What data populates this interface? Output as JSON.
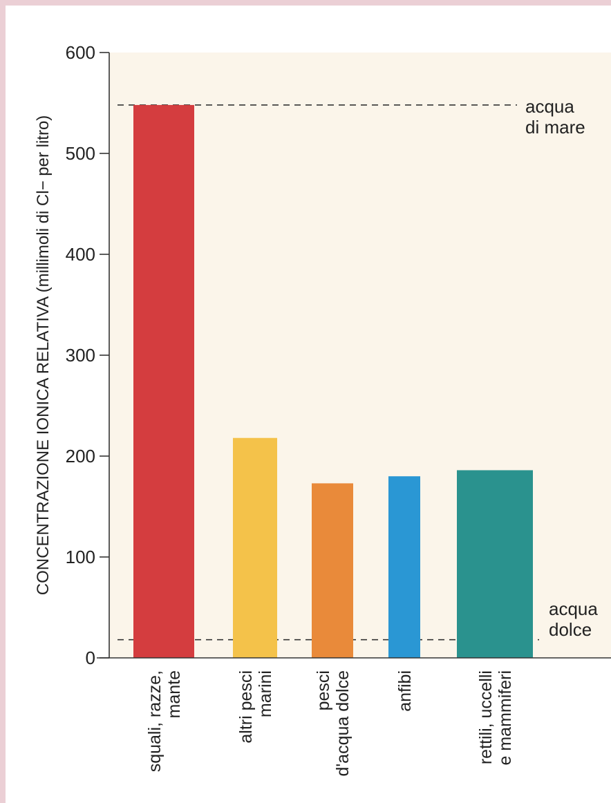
{
  "chart_data": {
    "type": "bar",
    "ylabel": "CONCENTRAZIONE IONICA RELATIVA (millimoli di Cl− per litro)",
    "xlabel": "",
    "ylim": [
      0,
      600
    ],
    "yticks": [
      "0",
      "100",
      "200",
      "300",
      "400",
      "500",
      "600"
    ],
    "yticks_values": [
      0,
      100,
      200,
      300,
      400,
      500,
      600
    ],
    "grid": false,
    "categories": [
      {
        "lines": [
          "squali, razze,",
          "mante"
        ],
        "value": 548,
        "color": "#d43d3f"
      },
      {
        "lines": [
          "altri pesci",
          "marini"
        ],
        "value": 218,
        "color": "#f4c24a"
      },
      {
        "lines": [
          "pesci",
          "d'acqua dolce"
        ],
        "value": 173,
        "color": "#e98a3a"
      },
      {
        "lines": [
          "anfibi"
        ],
        "value": 180,
        "color": "#2a97d4"
      },
      {
        "lines": [
          "rettili, uccelli",
          "e mammiferi"
        ],
        "value": 186,
        "color": "#2a928e"
      }
    ],
    "reference_lines": [
      {
        "value": 548,
        "lines": [
          "acqua",
          "di mare"
        ]
      },
      {
        "value": 18,
        "lines": [
          "acqua",
          "dolce"
        ]
      }
    ],
    "colors": {
      "plot_background": "#fbf5ea",
      "page_border": "#ebcfd5",
      "axis": "#333333"
    }
  }
}
